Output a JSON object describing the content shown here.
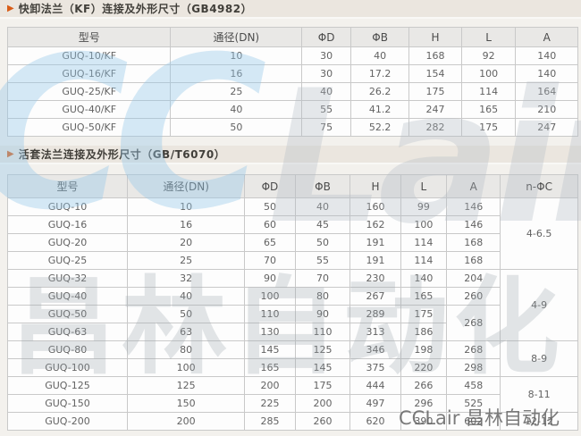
{
  "sections": [
    {
      "title": "快卸法兰（KF）连接及外形尺寸（GB4982）"
    },
    {
      "title": "活套法兰连接及外形尺寸（GB/T6070）"
    }
  ],
  "tables": [
    {
      "name": "kf-flange-table",
      "headers": [
        "型号",
        "通径(DN)",
        "ΦD",
        "ΦB",
        "H",
        "L",
        "A"
      ],
      "col_widths": [
        "28.6%",
        "23%",
        "8.6%",
        "10.2%",
        "9.2%",
        "9.5%",
        "10.9%"
      ],
      "rows": [
        [
          "GUQ-10/KF",
          "10",
          "30",
          "40",
          "168",
          "92",
          "140"
        ],
        [
          "GUQ-16/KF",
          "16",
          "30",
          "17.2",
          "154",
          "100",
          "140"
        ],
        [
          "GUQ-25/KF",
          "25",
          "40",
          "26.2",
          "175",
          "114",
          "164"
        ],
        [
          "GUQ-40/KF",
          "40",
          "55",
          "41.2",
          "247",
          "165",
          "210"
        ],
        [
          "GUQ-50/KF",
          "50",
          "75",
          "52.2",
          "282",
          "175",
          "247"
        ]
      ]
    },
    {
      "name": "loose-flange-table",
      "headers": [
        "型号",
        "通径(DN)",
        "ΦD",
        "ΦB",
        "H",
        "L",
        "A",
        "n-ΦC"
      ],
      "col_widths": [
        "21%",
        "20.6%",
        "8.8%",
        "9.7%",
        "8.8%",
        "8.1%",
        "9.4%",
        "13.6%"
      ],
      "rows": [
        [
          "GUQ-10",
          "10",
          "50",
          "40",
          "160",
          "99",
          "146",
          {
            "v": "4-6.5",
            "rs": 4
          }
        ],
        [
          "GUQ-16",
          "16",
          "60",
          "45",
          "162",
          "100",
          "146"
        ],
        [
          "GUQ-20",
          "20",
          "65",
          "50",
          "191",
          "114",
          "168"
        ],
        [
          "GUQ-25",
          "25",
          "70",
          "55",
          "191",
          "114",
          "168"
        ],
        [
          "GUQ-32",
          "32",
          "90",
          "70",
          "230",
          "140",
          "204",
          {
            "v": "4-9",
            "rs": 4
          }
        ],
        [
          "GUQ-40",
          "40",
          "100",
          "80",
          "267",
          "165",
          "260"
        ],
        [
          "GUQ-50",
          "50",
          "110",
          "90",
          "289",
          "175",
          {
            "v": "268",
            "rs": 2
          }
        ],
        [
          "GUQ-63",
          "63",
          "130",
          "110",
          "313",
          "186"
        ],
        [
          "GUQ-80",
          "80",
          "145",
          "125",
          "346",
          "198",
          "268",
          {
            "v": "8-9",
            "rs": 2
          }
        ],
        [
          "GUQ-100",
          "100",
          "165",
          "145",
          "375",
          "220",
          "298"
        ],
        [
          "GUQ-125",
          "125",
          "200",
          "175",
          "444",
          "266",
          "458",
          {
            "v": "8-11",
            "rs": 2
          }
        ],
        [
          "GUQ-150",
          "150",
          "225",
          "200",
          "497",
          "296",
          "525"
        ],
        [
          "GUQ-200",
          "200",
          "285",
          "260",
          "620",
          "390",
          "602",
          "12-12"
        ]
      ]
    }
  ],
  "watermarks": {
    "logo_left": "CC",
    "logo_right": "Lair",
    "cn_big": "昌林自动化",
    "corner": "CCLair 昌林自动化"
  },
  "colors": {
    "accent_arrow": "#d85c17",
    "section_bar_bg": "#ebe6df",
    "table_header_bg": "#e9e8e6",
    "table_border": "#c9c9c9",
    "watermark_blue": "#96c8e8",
    "watermark_gray": "#9ca5ad"
  }
}
